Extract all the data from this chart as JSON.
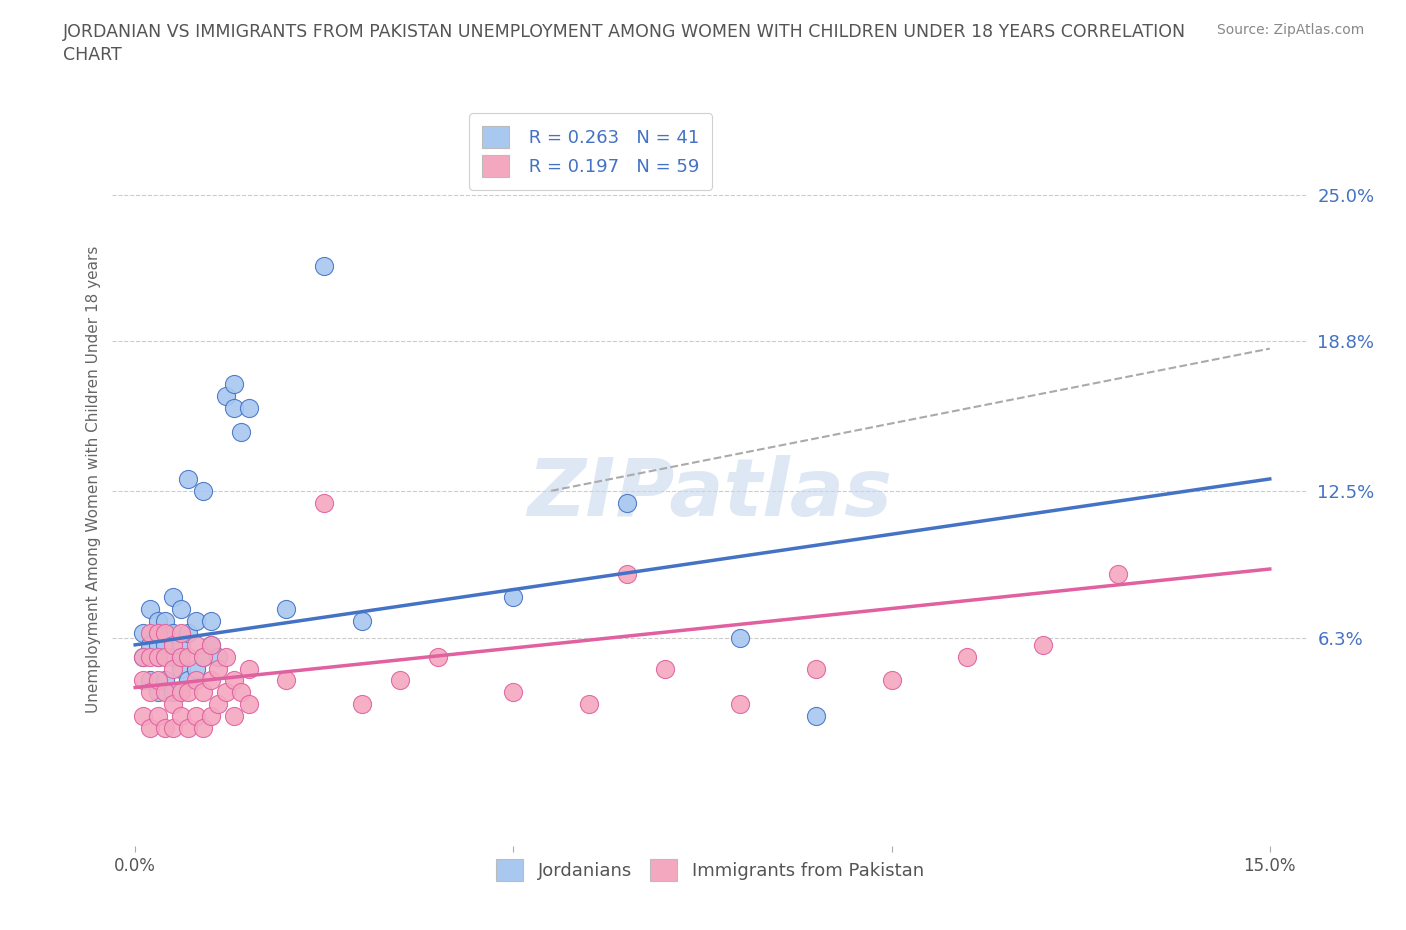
{
  "title": "JORDANIAN VS IMMIGRANTS FROM PAKISTAN UNEMPLOYMENT AMONG WOMEN WITH CHILDREN UNDER 18 YEARS CORRELATION\nCHART",
  "source": "Source: ZipAtlas.com",
  "ylabel": "Unemployment Among Women with Children Under 18 years",
  "xlim": [
    -0.003,
    0.155
  ],
  "ylim": [
    -0.025,
    0.285
  ],
  "xticks": [
    0.0,
    0.05,
    0.1,
    0.15
  ],
  "xtick_labels": [
    "0.0%",
    "",
    "",
    "15.0%"
  ],
  "ytick_vals": [
    0.063,
    0.125,
    0.188,
    0.25
  ],
  "ytick_labels_right": [
    "6.3%",
    "12.5%",
    "18.8%",
    "25.0%"
  ],
  "hlines": [
    0.063,
    0.125,
    0.188,
    0.25
  ],
  "blue_color": "#A8C8F0",
  "pink_color": "#F4A8C0",
  "blue_line_color": "#4472C4",
  "pink_line_color": "#E060A0",
  "dashed_line_color": "#AAAAAA",
  "watermark_color": "#C8D8EE",
  "legend_r1": "R = 0.263",
  "legend_n1": "N = 41",
  "legend_r2": "R = 0.197",
  "legend_n2": "N = 59",
  "jordanians_x": [
    0.001,
    0.001,
    0.002,
    0.002,
    0.002,
    0.003,
    0.003,
    0.003,
    0.003,
    0.004,
    0.004,
    0.004,
    0.005,
    0.005,
    0.005,
    0.005,
    0.006,
    0.006,
    0.006,
    0.007,
    0.007,
    0.007,
    0.008,
    0.008,
    0.009,
    0.009,
    0.01,
    0.01,
    0.011,
    0.012,
    0.013,
    0.013,
    0.014,
    0.015,
    0.02,
    0.025,
    0.03,
    0.05,
    0.065,
    0.08,
    0.09
  ],
  "jordanians_y": [
    0.055,
    0.065,
    0.045,
    0.06,
    0.075,
    0.04,
    0.055,
    0.06,
    0.07,
    0.045,
    0.06,
    0.07,
    0.04,
    0.055,
    0.065,
    0.08,
    0.05,
    0.06,
    0.075,
    0.045,
    0.065,
    0.13,
    0.05,
    0.07,
    0.055,
    0.125,
    0.06,
    0.07,
    0.055,
    0.165,
    0.16,
    0.17,
    0.15,
    0.16,
    0.075,
    0.22,
    0.07,
    0.08,
    0.12,
    0.063,
    0.03
  ],
  "pakistan_x": [
    0.001,
    0.001,
    0.001,
    0.002,
    0.002,
    0.002,
    0.002,
    0.003,
    0.003,
    0.003,
    0.003,
    0.004,
    0.004,
    0.004,
    0.004,
    0.005,
    0.005,
    0.005,
    0.005,
    0.006,
    0.006,
    0.006,
    0.006,
    0.007,
    0.007,
    0.007,
    0.008,
    0.008,
    0.008,
    0.009,
    0.009,
    0.009,
    0.01,
    0.01,
    0.01,
    0.011,
    0.011,
    0.012,
    0.012,
    0.013,
    0.013,
    0.014,
    0.015,
    0.015,
    0.02,
    0.025,
    0.03,
    0.035,
    0.04,
    0.05,
    0.06,
    0.065,
    0.07,
    0.08,
    0.09,
    0.1,
    0.11,
    0.12,
    0.13
  ],
  "pakistan_y": [
    0.03,
    0.045,
    0.055,
    0.025,
    0.04,
    0.055,
    0.065,
    0.03,
    0.045,
    0.055,
    0.065,
    0.025,
    0.04,
    0.055,
    0.065,
    0.025,
    0.035,
    0.05,
    0.06,
    0.03,
    0.04,
    0.055,
    0.065,
    0.025,
    0.04,
    0.055,
    0.03,
    0.045,
    0.06,
    0.025,
    0.04,
    0.055,
    0.03,
    0.045,
    0.06,
    0.035,
    0.05,
    0.04,
    0.055,
    0.03,
    0.045,
    0.04,
    0.035,
    0.05,
    0.045,
    0.12,
    0.035,
    0.045,
    0.055,
    0.04,
    0.035,
    0.09,
    0.05,
    0.035,
    0.05,
    0.045,
    0.055,
    0.06,
    0.09
  ],
  "blue_line_x": [
    0.0,
    0.15
  ],
  "blue_line_y": [
    0.06,
    0.13
  ],
  "pink_line_x": [
    0.0,
    0.15
  ],
  "pink_line_y": [
    0.042,
    0.092
  ],
  "dashed_line_x": [
    0.055,
    0.15
  ],
  "dashed_line_y": [
    0.125,
    0.185
  ]
}
